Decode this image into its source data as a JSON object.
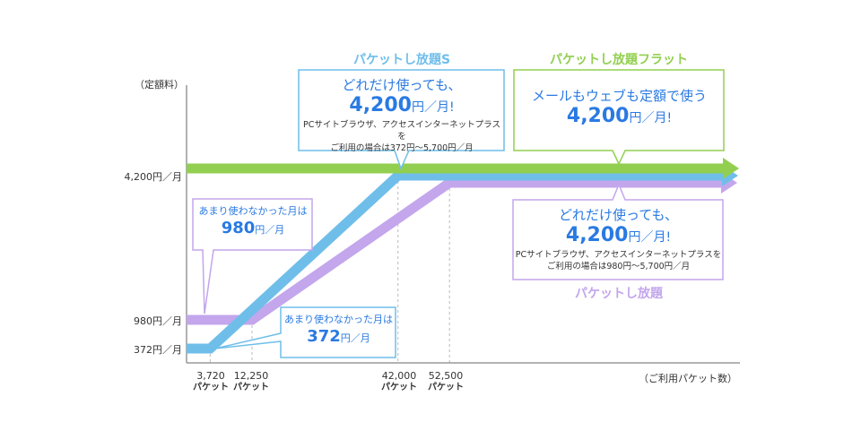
{
  "chart_data": {
    "type": "line",
    "ylabel": "（定額料）",
    "xlabel": "（ご利用パケット数）",
    "y_ticks": [
      "4,200円／月",
      "980円／月",
      "372円／月"
    ],
    "x_ticks": [
      {
        "value": 3720,
        "label": "3,720",
        "unit": "パケット"
      },
      {
        "value": 12250,
        "label": "12,250",
        "unit": "パケット"
      },
      {
        "value": 42000,
        "label": "42,000",
        "unit": "パケット"
      },
      {
        "value": 52500,
        "label": "52,500",
        "unit": "パケット"
      }
    ],
    "series": [
      {
        "name": "パケットし放題フラット",
        "color": "#92cf50",
        "points": [
          [
            0,
            4200
          ],
          [
            112000,
            4200
          ]
        ]
      },
      {
        "name": "パケットし放題S",
        "color": "#6fbeea",
        "points": [
          [
            0,
            372
          ],
          [
            3720,
            372
          ],
          [
            42000,
            4200
          ],
          [
            112000,
            4200
          ]
        ]
      },
      {
        "name": "パケットし放題",
        "color": "#c3a6ec",
        "points": [
          [
            0,
            980
          ],
          [
            12250,
            980
          ],
          [
            52500,
            4200
          ],
          [
            112000,
            4200
          ]
        ]
      }
    ]
  },
  "titles": {
    "s": "パケットし放題S",
    "flat": "パケットし放題フラット",
    "normal": "パケットし放題"
  },
  "callouts": {
    "s_main": {
      "lead": "どれだけ使っても、",
      "amount": "4,200",
      "unit": "円／月!",
      "note1": "PCサイトブラウザ、アクセスインターネットプラスを",
      "note2": "ご利用の場合は372円〜5,700円／月"
    },
    "flat_main": {
      "lead": "メールもウェブも定額で使う",
      "amount": "4,200",
      "unit": "円／月!"
    },
    "normal_main": {
      "lead": "どれだけ使っても、",
      "amount": "4,200",
      "unit": "円／月!",
      "note1": "PCサイトブラウザ、アクセスインターネットプラスを",
      "note2": "ご利用の場合は980円〜5,700円／月"
    },
    "normal_min": {
      "lead": "あまり使わなかった月は",
      "amount": "980",
      "unit": "円／月"
    },
    "s_min": {
      "lead": "あまり使わなかった月は",
      "amount": "372",
      "unit": "円／月"
    }
  },
  "colors": {
    "blue": "#6fbeea",
    "green": "#92cf50",
    "purple": "#c3a6ec",
    "text_blue": "#2a7ae2"
  }
}
